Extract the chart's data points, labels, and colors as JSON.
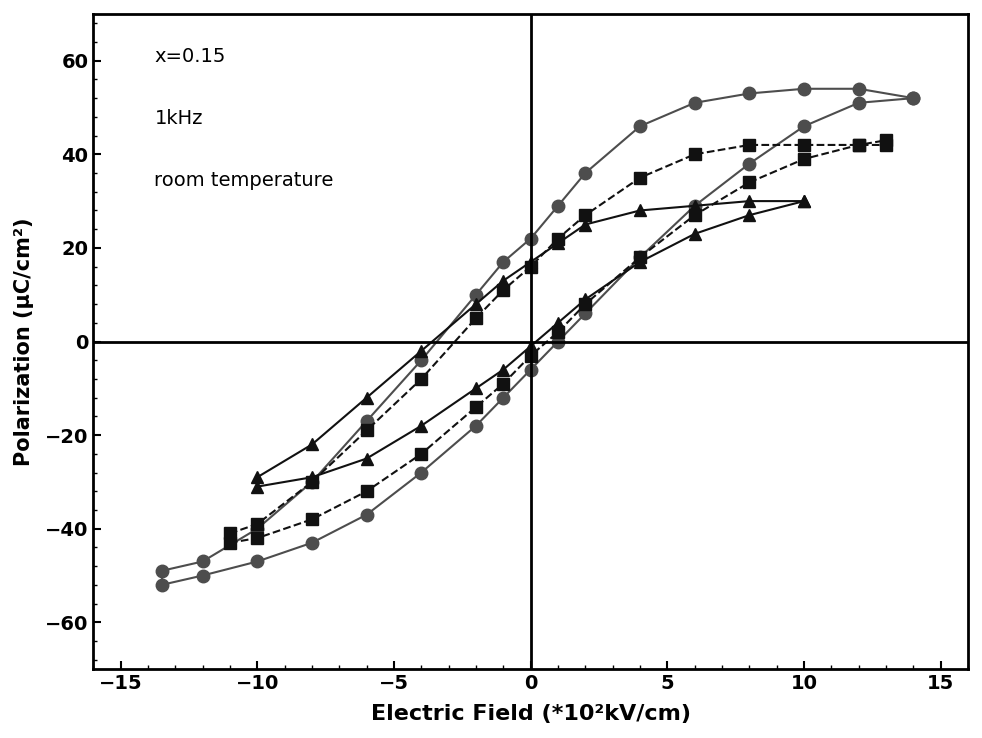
{
  "title_text": "x=0.15\n\n1kHz\n\nroom temperature",
  "xlabel": "Electric Field (*10²kV/cm)",
  "ylabel": "Polarization (μC/cm²)",
  "xlim": [
    -16,
    16
  ],
  "ylim": [
    -70,
    70
  ],
  "xticks": [
    -15,
    -10,
    -5,
    0,
    5,
    10,
    15
  ],
  "yticks": [
    -60,
    -40,
    -20,
    0,
    20,
    40,
    60
  ],
  "background_color": "#ffffff",
  "series": [
    {
      "name": "circle_top",
      "x": [
        -13.5,
        -12,
        -10,
        -8,
        -6,
        -4,
        -2,
        -1,
        0,
        1,
        2,
        4,
        6,
        8,
        10,
        12,
        14
      ],
      "y": [
        -49,
        -47,
        -40,
        -30,
        -17,
        -4,
        10,
        17,
        22,
        29,
        36,
        46,
        51,
        53,
        54,
        54,
        52
      ],
      "marker": "o",
      "color": "#4d4d4d",
      "linestyle": "-",
      "linewidth": 1.5,
      "markersize": 9,
      "zorder": 2
    },
    {
      "name": "circle_bottom",
      "x": [
        -13.5,
        -12,
        -10,
        -8,
        -6,
        -4,
        -2,
        -1,
        0,
        1,
        2,
        4,
        6,
        8,
        10,
        12,
        14
      ],
      "y": [
        -52,
        -50,
        -47,
        -43,
        -37,
        -28,
        -18,
        -12,
        -6,
        0,
        6,
        18,
        29,
        38,
        46,
        51,
        52
      ],
      "marker": "o",
      "color": "#4d4d4d",
      "linestyle": "-",
      "linewidth": 1.5,
      "markersize": 9,
      "zorder": 2
    },
    {
      "name": "square_top",
      "x": [
        -11,
        -10,
        -8,
        -6,
        -4,
        -2,
        -1,
        0,
        1,
        2,
        4,
        6,
        8,
        10,
        12,
        13
      ],
      "y": [
        -41,
        -39,
        -30,
        -19,
        -8,
        5,
        11,
        16,
        22,
        27,
        35,
        40,
        42,
        42,
        42,
        42
      ],
      "marker": "s",
      "color": "#111111",
      "linestyle": "--",
      "linewidth": 1.5,
      "markersize": 8,
      "zorder": 3
    },
    {
      "name": "square_bottom",
      "x": [
        -11,
        -10,
        -8,
        -6,
        -4,
        -2,
        -1,
        0,
        1,
        2,
        4,
        6,
        8,
        10,
        12,
        13
      ],
      "y": [
        -43,
        -42,
        -38,
        -32,
        -24,
        -14,
        -9,
        -3,
        2,
        8,
        18,
        27,
        34,
        39,
        42,
        43
      ],
      "marker": "s",
      "color": "#111111",
      "linestyle": "--",
      "linewidth": 1.5,
      "markersize": 8,
      "zorder": 3
    },
    {
      "name": "triangle_top",
      "x": [
        -10,
        -8,
        -6,
        -4,
        -2,
        -1,
        0,
        1,
        2,
        4,
        6,
        8,
        10
      ],
      "y": [
        -29,
        -22,
        -12,
        -2,
        8,
        13,
        17,
        21,
        25,
        28,
        29,
        30,
        30
      ],
      "marker": "^",
      "color": "#111111",
      "linestyle": "-",
      "linewidth": 1.5,
      "markersize": 9,
      "zorder": 3
    },
    {
      "name": "triangle_bottom",
      "x": [
        -10,
        -8,
        -6,
        -4,
        -2,
        -1,
        0,
        1,
        2,
        4,
        6,
        8,
        10
      ],
      "y": [
        -31,
        -29,
        -25,
        -18,
        -10,
        -6,
        -1,
        4,
        9,
        17,
        23,
        27,
        30
      ],
      "marker": "^",
      "color": "#111111",
      "linestyle": "-",
      "linewidth": 1.5,
      "markersize": 9,
      "zorder": 3
    }
  ]
}
